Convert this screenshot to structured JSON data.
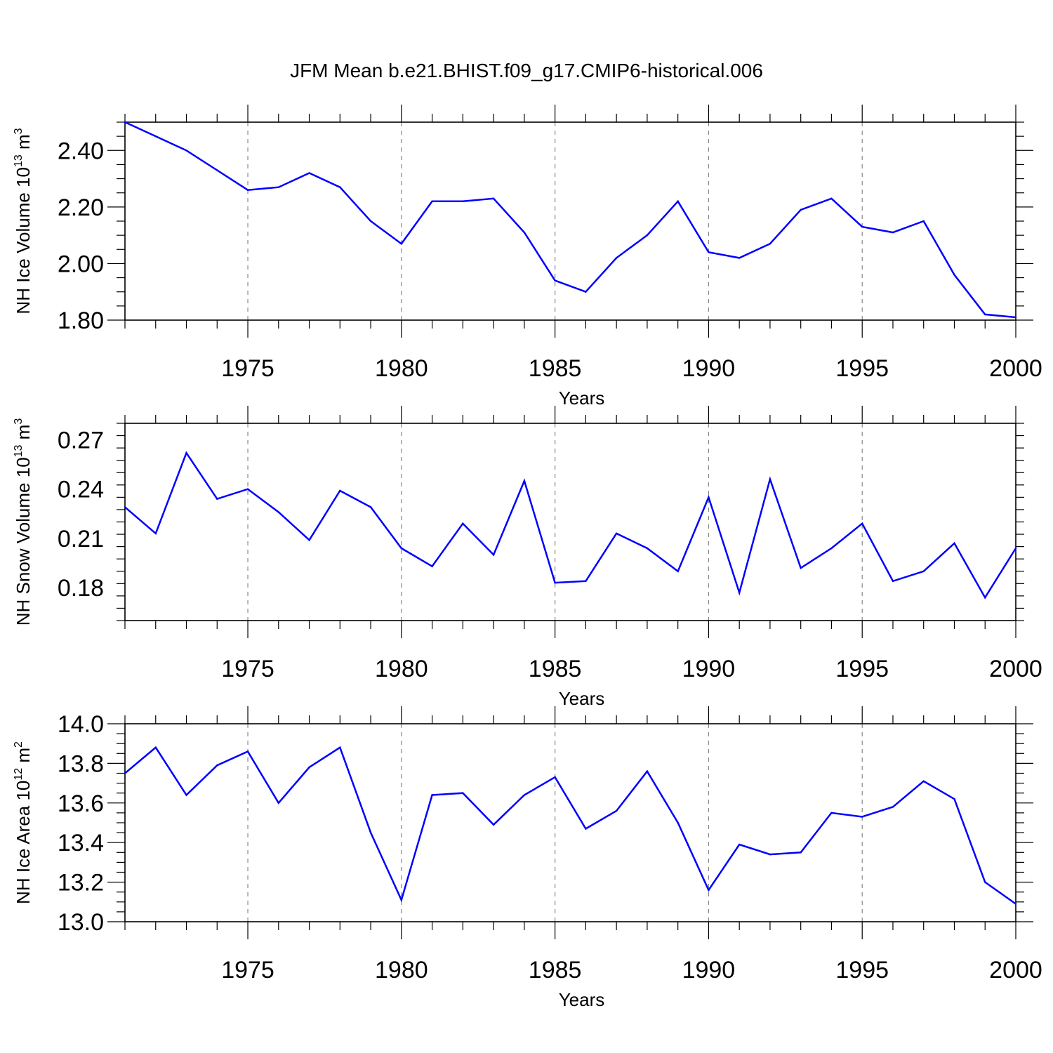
{
  "title": "JFM Mean b.e21.BHIST.f09_g17.CMIP6-historical.006",
  "colors": {
    "line": "#0000ff",
    "axis": "#000000",
    "grid": "#888888"
  },
  "chart_data": [
    {
      "type": "line",
      "title": "JFM Mean b.e21.BHIST.f09_g17.CMIP6-historical.006",
      "xlabel": "Years",
      "ylabel": {
        "main": "NH Ice Volume 10",
        "exp": "13",
        "unit": " m",
        "unit_exp": "3"
      },
      "xlim": [
        1971,
        2000
      ],
      "ylim": [
        1.8,
        2.5
      ],
      "grid": "vertical dashed at major x ticks",
      "xticks": [
        1975,
        1980,
        1985,
        1990,
        1995,
        2000
      ],
      "xtick_labels": [
        "1975",
        "1980",
        "1985",
        "1990",
        "1995",
        "2000"
      ],
      "yticks": [
        1.8,
        2.0,
        2.2,
        2.4
      ],
      "ytick_labels": [
        "1.80",
        "2.00",
        "2.20",
        "2.40"
      ],
      "series": [
        {
          "name": "NH Ice Volume",
          "x": [
            1971,
            1972,
            1973,
            1974,
            1975,
            1976,
            1977,
            1978,
            1979,
            1980,
            1981,
            1982,
            1983,
            1984,
            1985,
            1986,
            1987,
            1988,
            1989,
            1990,
            1991,
            1992,
            1993,
            1994,
            1995,
            1996,
            1997,
            1998,
            1999,
            2000
          ],
          "values": [
            2.5,
            2.45,
            2.4,
            2.33,
            2.26,
            2.27,
            2.32,
            2.27,
            2.15,
            2.07,
            2.22,
            2.22,
            2.23,
            2.11,
            1.94,
            1.9,
            2.02,
            2.1,
            2.22,
            2.04,
            2.02,
            2.07,
            2.19,
            2.23,
            2.13,
            2.11,
            2.15,
            1.96,
            1.82,
            1.81
          ]
        }
      ]
    },
    {
      "type": "line",
      "xlabel": "Years",
      "ylabel": {
        "main": "NH Snow Volume 10",
        "exp": "13",
        "unit": " m",
        "unit_exp": "3"
      },
      "xlim": [
        1971,
        2000
      ],
      "ylim": [
        0.16,
        0.28
      ],
      "grid": "vertical dashed at major x ticks",
      "xticks": [
        1975,
        1980,
        1985,
        1990,
        1995,
        2000
      ],
      "xtick_labels": [
        "1975",
        "1980",
        "1985",
        "1990",
        "1995",
        "2000"
      ],
      "yticks": [
        0.18,
        0.21,
        0.24,
        0.27
      ],
      "ytick_labels": [
        "0.18",
        "0.21",
        "0.24",
        "0.27"
      ],
      "series": [
        {
          "name": "NH Snow Volume",
          "x": [
            1971,
            1972,
            1973,
            1974,
            1975,
            1976,
            1977,
            1978,
            1979,
            1980,
            1981,
            1982,
            1983,
            1984,
            1985,
            1986,
            1987,
            1988,
            1989,
            1990,
            1991,
            1992,
            1993,
            1994,
            1995,
            1996,
            1997,
            1998,
            1999,
            2000
          ],
          "values": [
            0.229,
            0.213,
            0.262,
            0.234,
            0.24,
            0.226,
            0.209,
            0.239,
            0.229,
            0.204,
            0.193,
            0.219,
            0.2,
            0.245,
            0.183,
            0.184,
            0.213,
            0.204,
            0.19,
            0.235,
            0.177,
            0.246,
            0.192,
            0.204,
            0.219,
            0.184,
            0.19,
            0.207,
            0.174,
            0.204
          ]
        }
      ]
    },
    {
      "type": "line",
      "xlabel": "Years",
      "ylabel": {
        "main": "NH Ice Area 10",
        "exp": "12",
        "unit": " m",
        "unit_exp": "2"
      },
      "xlim": [
        1971,
        2000
      ],
      "ylim": [
        13.0,
        14.0
      ],
      "grid": "vertical dashed at major x ticks",
      "xticks": [
        1975,
        1980,
        1985,
        1990,
        1995,
        2000
      ],
      "xtick_labels": [
        "1975",
        "1980",
        "1985",
        "1990",
        "1995",
        "2000"
      ],
      "yticks": [
        13.0,
        13.2,
        13.4,
        13.6,
        13.8,
        14.0
      ],
      "ytick_labels": [
        "13.0",
        "13.2",
        "13.4",
        "13.6",
        "13.8",
        "14.0"
      ],
      "series": [
        {
          "name": "NH Ice Area",
          "x": [
            1971,
            1972,
            1973,
            1974,
            1975,
            1976,
            1977,
            1978,
            1979,
            1980,
            1981,
            1982,
            1983,
            1984,
            1985,
            1986,
            1987,
            1988,
            1989,
            1990,
            1991,
            1992,
            1993,
            1994,
            1995,
            1996,
            1997,
            1998,
            1999,
            2000
          ],
          "values": [
            13.75,
            13.88,
            13.64,
            13.79,
            13.86,
            13.6,
            13.78,
            13.88,
            13.45,
            13.11,
            13.64,
            13.65,
            13.49,
            13.64,
            13.73,
            13.47,
            13.56,
            13.76,
            13.5,
            13.16,
            13.39,
            13.34,
            13.35,
            13.55,
            13.53,
            13.58,
            13.71,
            13.62,
            13.2,
            13.09
          ]
        }
      ]
    }
  ]
}
